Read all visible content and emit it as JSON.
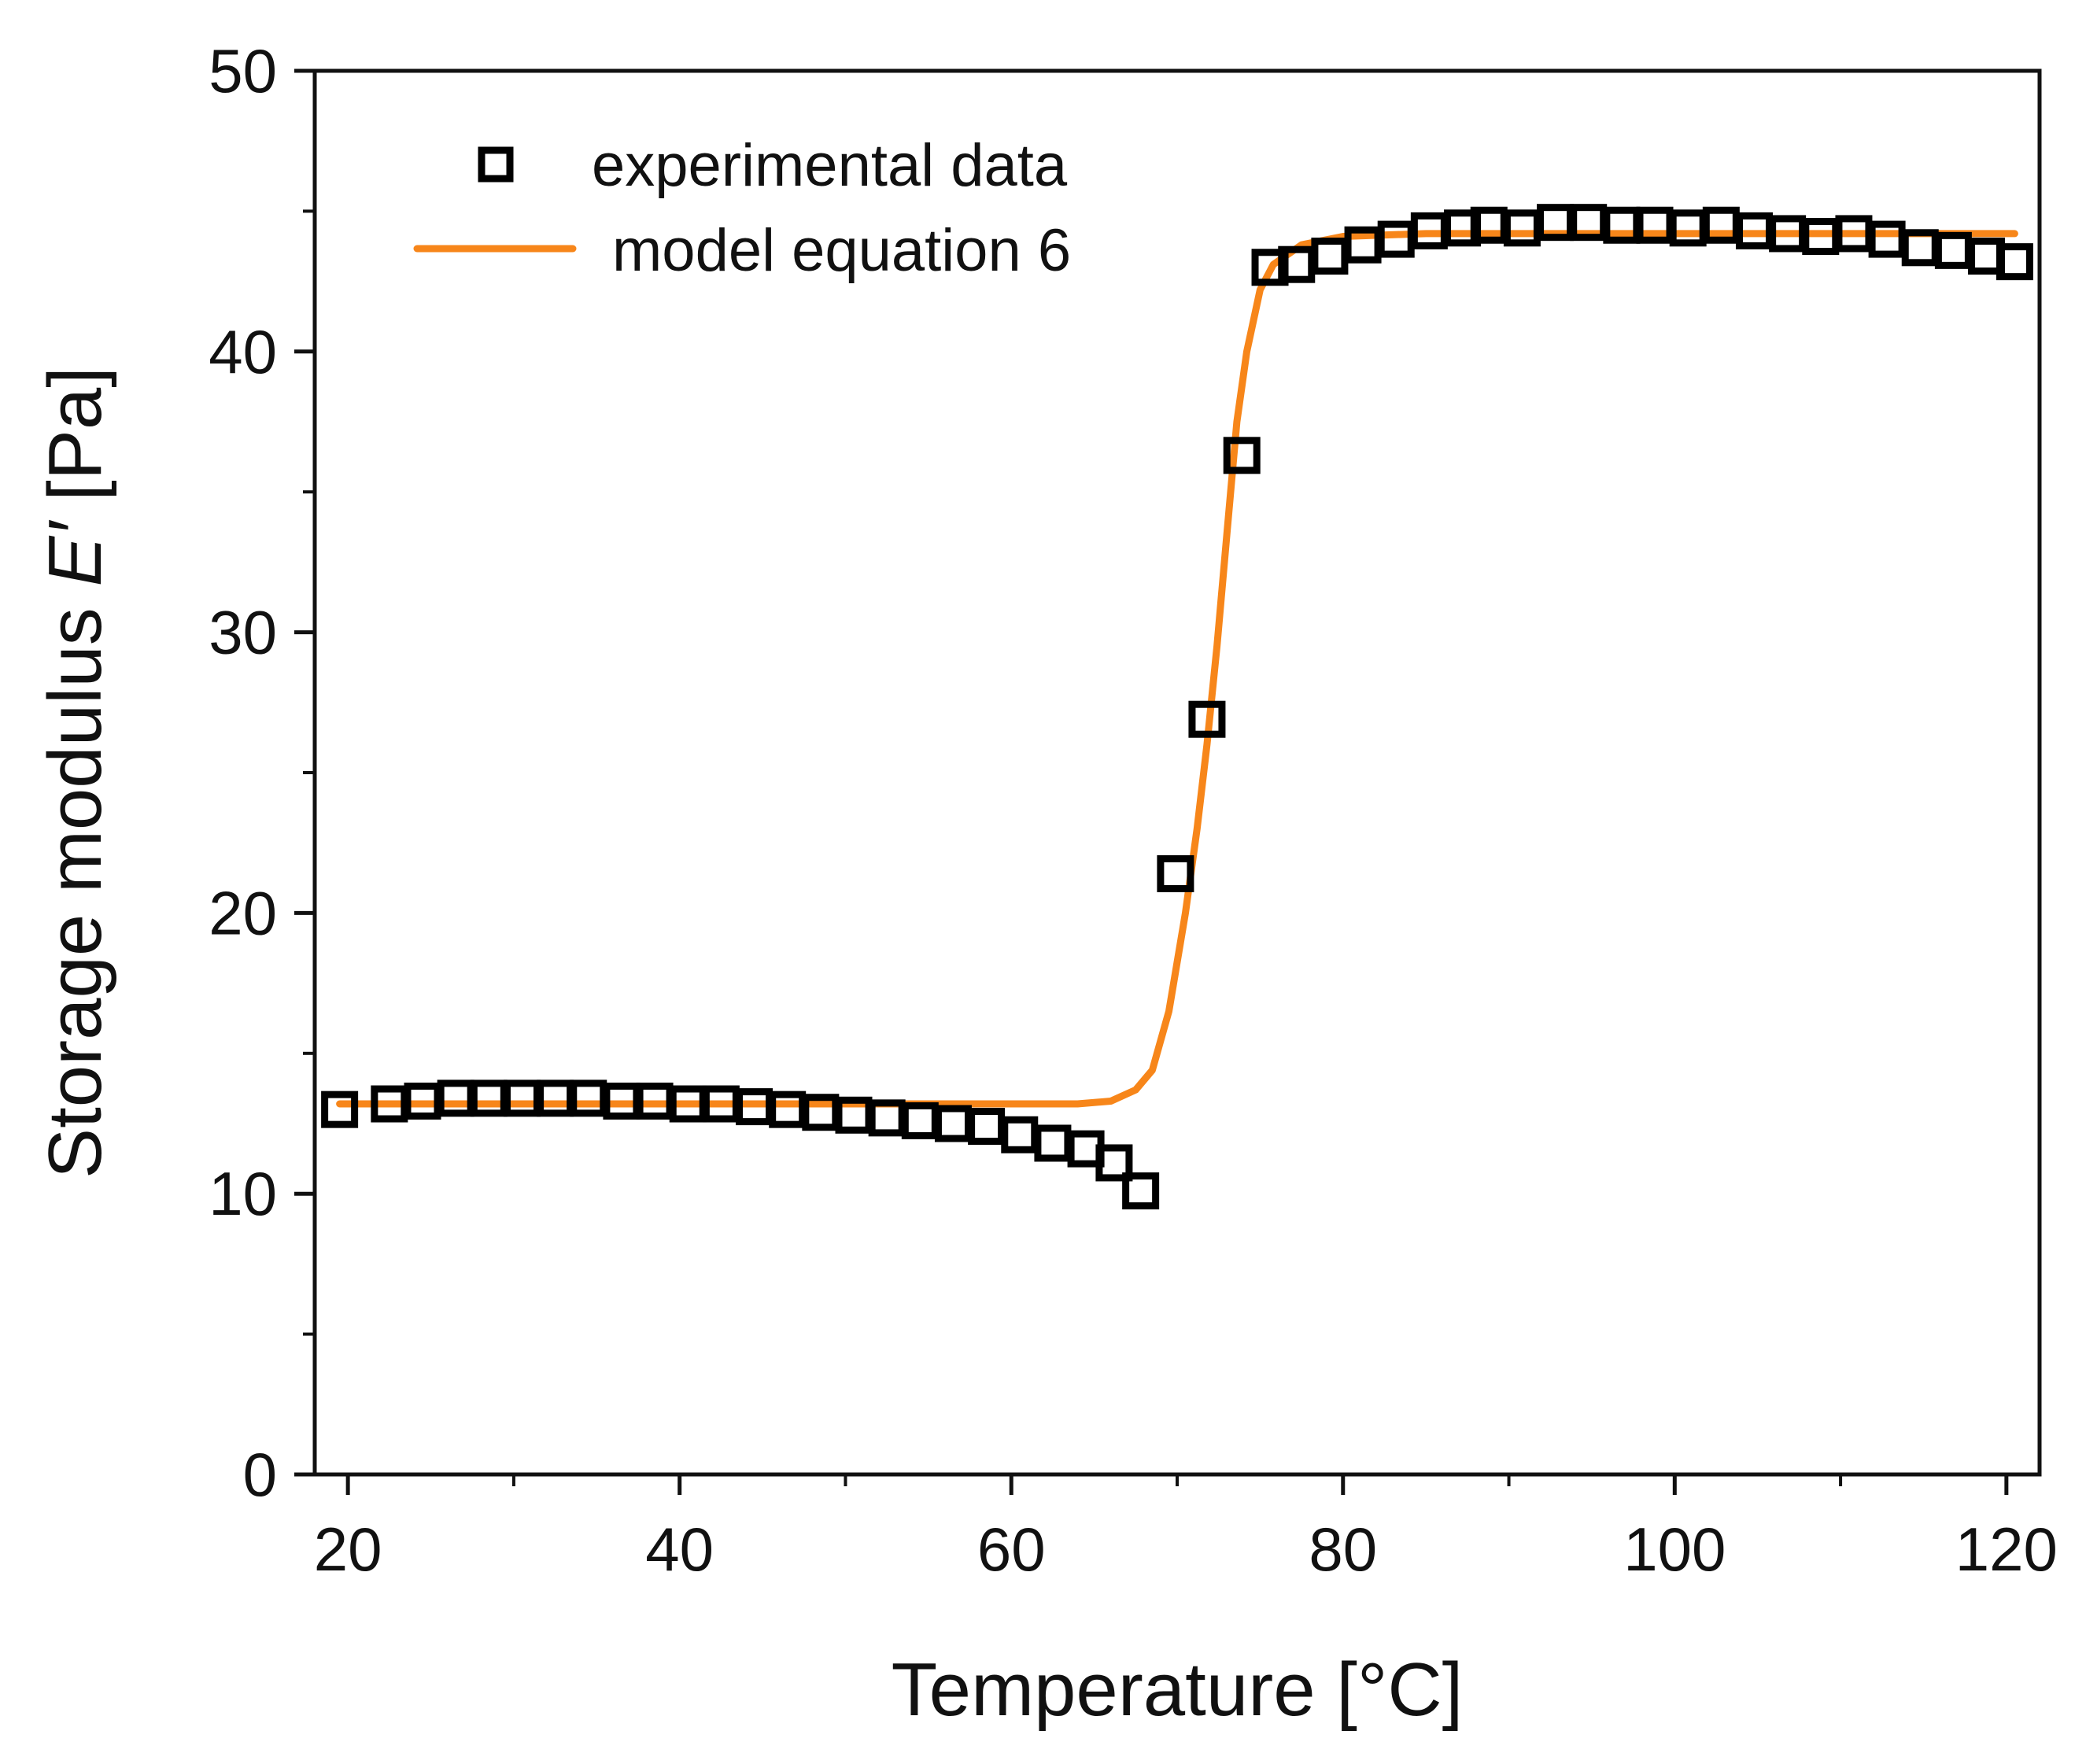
{
  "chart_data": {
    "type": "scatter",
    "title": "",
    "xlabel": "Temperature [°C]",
    "ylabel_prefix": "Storage modulus ",
    "ylabel_symbol": "E′",
    "ylabel_suffix": " [Pa]",
    "xlim": [
      18,
      122
    ],
    "ylim": [
      0,
      50
    ],
    "x_ticks": [
      20,
      40,
      60,
      80,
      100,
      120
    ],
    "x_minor_ticks": [
      30,
      50,
      70,
      90,
      110
    ],
    "y_ticks": [
      0,
      10,
      20,
      30,
      40,
      50
    ],
    "y_minor_ticks": [
      5,
      15,
      25,
      35,
      45
    ],
    "grid": false,
    "legend_position": "top-left",
    "colors": {
      "experimental": "#000000",
      "model": "#f7861a",
      "axis": "#111111"
    },
    "series": [
      {
        "name": "experimental data",
        "kind": "markers",
        "marker": "open-square",
        "x": [
          19.5,
          22.5,
          24.5,
          26.5,
          28.5,
          30.5,
          32.5,
          34.5,
          36.5,
          38.5,
          40.5,
          42.5,
          44.5,
          46.5,
          48.5,
          50.5,
          52.5,
          54.5,
          56.5,
          58.5,
          60.5,
          62.5,
          64.5,
          66.2,
          67.8,
          69.9,
          71.8,
          73.9,
          75.6,
          77.2,
          79.2,
          81.2,
          83.2,
          85.2,
          87.2,
          88.8,
          90.8,
          92.8,
          94.8,
          96.8,
          98.8,
          100.8,
          102.8,
          104.8,
          106.8,
          108.8,
          110.8,
          112.8,
          114.8,
          116.8,
          118.8,
          120.5
        ],
        "y": [
          13.0,
          13.2,
          13.3,
          13.4,
          13.4,
          13.4,
          13.4,
          13.4,
          13.3,
          13.3,
          13.2,
          13.2,
          13.1,
          13.0,
          12.9,
          12.8,
          12.7,
          12.6,
          12.5,
          12.4,
          12.1,
          11.8,
          11.6,
          11.1,
          10.1,
          21.4,
          26.9,
          36.3,
          43.0,
          43.1,
          43.4,
          43.8,
          44.0,
          44.3,
          44.4,
          44.5,
          44.4,
          44.6,
          44.6,
          44.5,
          44.5,
          44.4,
          44.5,
          44.3,
          44.2,
          44.1,
          44.2,
          44.0,
          43.7,
          43.6,
          43.4,
          43.2
        ]
      },
      {
        "name": "model equation 6",
        "kind": "line",
        "x": [
          19.5,
          30,
          40,
          50,
          60,
          64,
          66,
          67.5,
          68.5,
          69.5,
          70.5,
          71.2,
          71.8,
          72.4,
          73.0,
          73.6,
          74.2,
          75.0,
          75.8,
          77.5,
          80,
          85,
          90,
          100,
          110,
          120.5
        ],
        "y": [
          13.2,
          13.2,
          13.2,
          13.2,
          13.2,
          13.2,
          13.3,
          13.7,
          14.4,
          16.5,
          20.0,
          23.0,
          26.0,
          29.5,
          33.5,
          37.5,
          40.0,
          42.2,
          43.1,
          43.8,
          44.1,
          44.2,
          44.2,
          44.2,
          44.2,
          44.2
        ]
      }
    ]
  }
}
